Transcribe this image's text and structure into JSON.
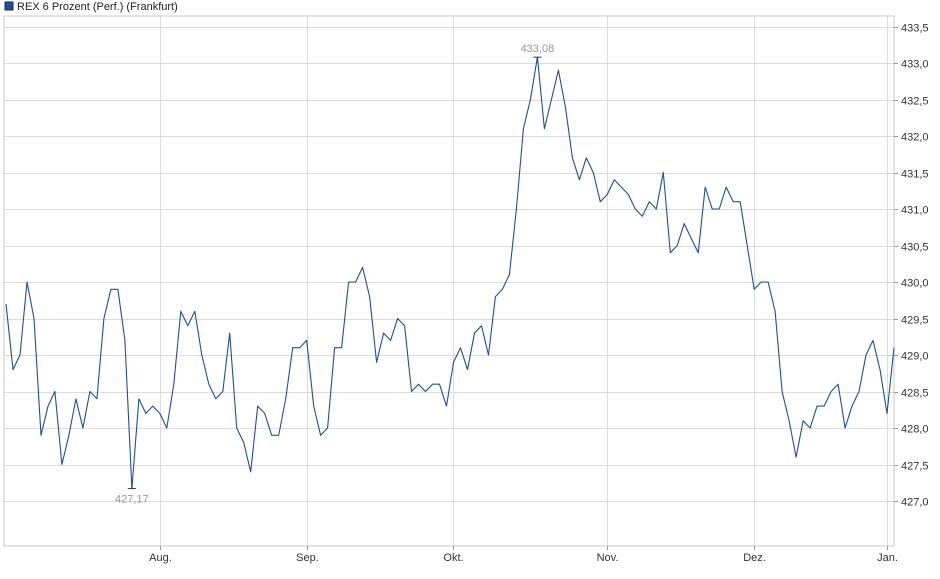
{
  "chart_data": {
    "type": "line",
    "legend": {
      "label": "REX 6 Prozent (Perf.) (Frankfurt)",
      "position": "top-left"
    },
    "ylim": [
      426.7,
      433.6
    ],
    "y_ticks": [
      427.0,
      427.5,
      428.0,
      428.5,
      429.0,
      429.5,
      430.0,
      430.5,
      431.0,
      431.5,
      432.0,
      432.5,
      433.0,
      433.5
    ],
    "y_tick_labels": [
      "427,0",
      "427,5",
      "428,0",
      "428,5",
      "429,0",
      "429,5",
      "430,0",
      "430,5",
      "431,0",
      "431,5",
      "432,0",
      "432,5",
      "433,0",
      "433,5"
    ],
    "x_tick_labels": [
      "Aug.",
      "Sep.",
      "Okt.",
      "Nov.",
      "Dez.",
      "Jan."
    ],
    "x_tick_index": [
      22,
      43,
      64,
      86,
      107,
      126
    ],
    "grid": true,
    "series": [
      {
        "name": "REX 6 Prozent (Perf.) (Frankfurt)",
        "color": "#1f4e99",
        "values": [
          429.7,
          428.8,
          429.0,
          430.0,
          429.5,
          427.9,
          428.3,
          428.5,
          427.5,
          427.9,
          428.4,
          428.0,
          428.5,
          428.4,
          429.5,
          429.9,
          429.9,
          429.2,
          427.17,
          428.4,
          428.2,
          428.3,
          428.2,
          428.0,
          428.6,
          429.6,
          429.4,
          429.6,
          429.0,
          428.6,
          428.4,
          428.5,
          429.3,
          428.0,
          427.8,
          427.4,
          428.3,
          428.2,
          427.9,
          427.9,
          428.4,
          429.1,
          429.1,
          429.2,
          428.3,
          427.9,
          428.0,
          429.1,
          429.1,
          430.0,
          430.0,
          430.2,
          429.8,
          428.9,
          429.3,
          429.2,
          429.5,
          429.4,
          428.5,
          428.6,
          428.5,
          428.6,
          428.6,
          428.3,
          428.9,
          429.1,
          428.8,
          429.3,
          429.4,
          429.0,
          429.8,
          429.9,
          430.1,
          431.0,
          432.1,
          432.5,
          433.08,
          432.1,
          432.5,
          432.9,
          432.4,
          431.7,
          431.4,
          431.7,
          431.5,
          431.1,
          431.2,
          431.4,
          431.3,
          431.2,
          431.0,
          430.9,
          431.1,
          431.0,
          431.5,
          430.4,
          430.5,
          430.8,
          430.6,
          430.4,
          431.3,
          431.0,
          431.0,
          431.3,
          431.1,
          431.1,
          430.5,
          429.9,
          430.0,
          430.0,
          429.6,
          428.5,
          428.1,
          427.6,
          428.1,
          428.0,
          428.3,
          428.3,
          428.5,
          428.6,
          428.0,
          428.3,
          428.5,
          429.0,
          429.2,
          428.8,
          428.2,
          429.1
        ]
      }
    ],
    "annotations": [
      {
        "text": "433,08",
        "index": 76,
        "value": 433.08,
        "type": "max"
      },
      {
        "text": "427,17",
        "index": 18,
        "value": 427.17,
        "type": "min"
      }
    ]
  }
}
